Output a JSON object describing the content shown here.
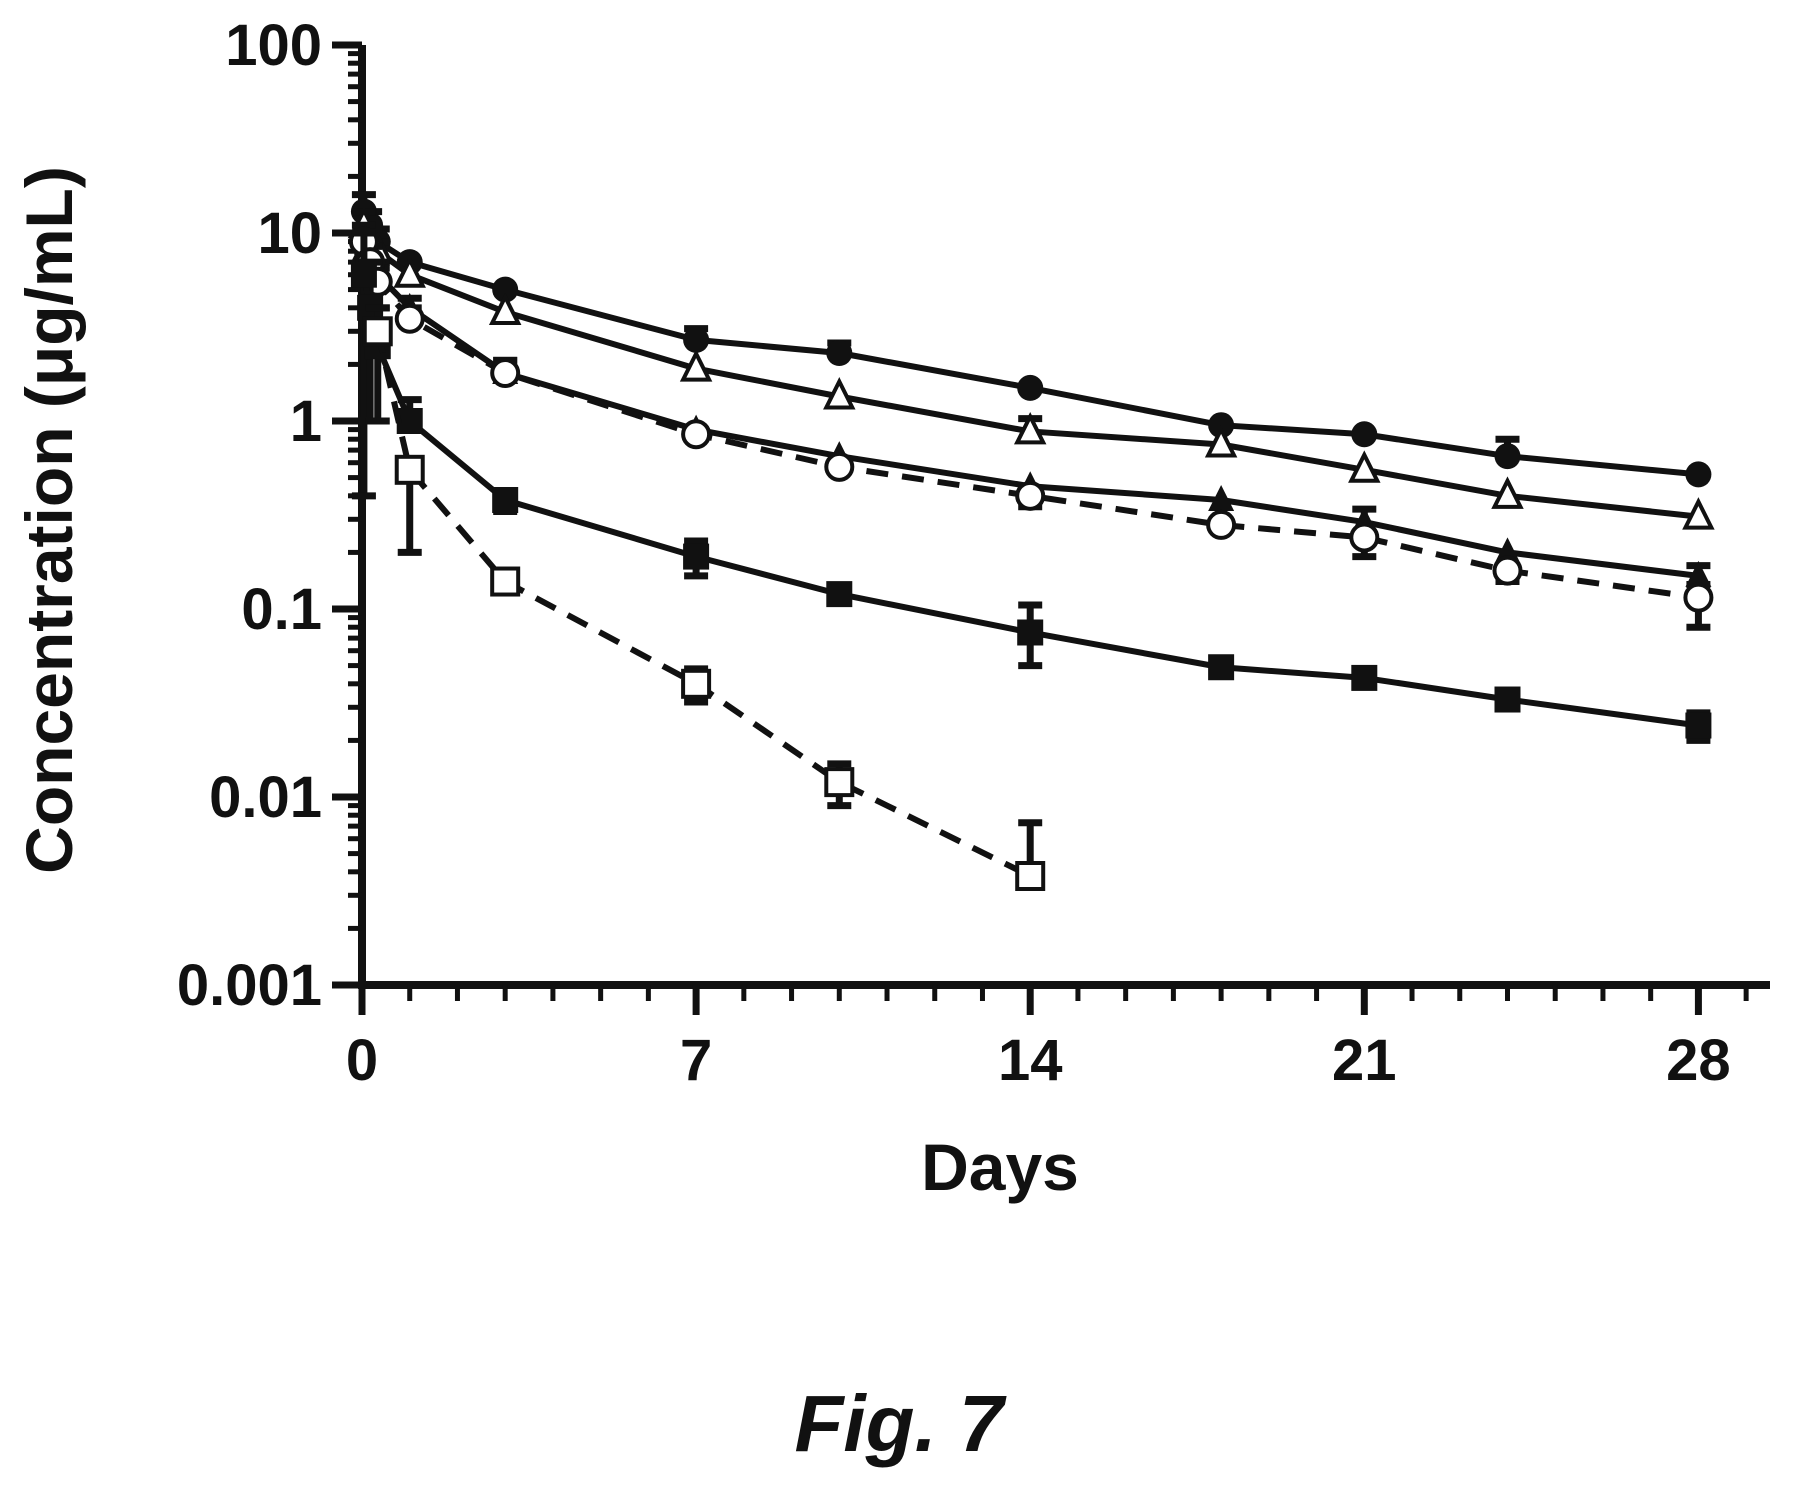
{
  "caption": "Fig. 7",
  "chart_data": {
    "type": "line",
    "title": "",
    "xlabel": "Days",
    "ylabel": "Concentration (μg/mL)",
    "xlim": [
      0,
      29.5
    ],
    "ylim": [
      0.001,
      100
    ],
    "yscale": "log",
    "xticks": [
      0,
      7,
      14,
      21,
      28
    ],
    "xtick_labels": [
      "0",
      "7",
      "14",
      "21",
      "28"
    ],
    "yticks": [
      0.001,
      0.01,
      0.1,
      1,
      10,
      100
    ],
    "ytick_labels": [
      "0.001",
      "0.01",
      "0.1",
      "1",
      "10",
      "100"
    ],
    "grid": false,
    "legend": "none",
    "series": [
      {
        "marker": "filled-circle",
        "line": "solid",
        "color": "#111111",
        "x": [
          0.04,
          0.17,
          0.33,
          1,
          3,
          7,
          10,
          14,
          18,
          21,
          24,
          28
        ],
        "y": [
          13,
          11,
          9,
          7,
          5,
          2.7,
          2.3,
          1.5,
          0.95,
          0.85,
          0.65,
          0.52
        ],
        "err_up": [
          3,
          2,
          1.5,
          0,
          0,
          0.4,
          0.3,
          0,
          0,
          0,
          0.15,
          0
        ]
      },
      {
        "marker": "open-triangle",
        "line": "solid",
        "color": "#111111",
        "x": [
          0.04,
          0.17,
          0.33,
          1,
          3,
          7,
          10,
          14,
          18,
          21,
          24,
          28
        ],
        "y": [
          11,
          9,
          8,
          6,
          3.8,
          1.9,
          1.35,
          0.88,
          0.75,
          0.55,
          0.4,
          0.31
        ],
        "err_up": [
          2,
          1.5,
          1,
          0,
          0,
          0,
          0,
          0.15,
          0,
          0,
          0,
          0
        ]
      },
      {
        "marker": "filled-triangle",
        "line": "solid",
        "color": "#111111",
        "x": [
          0.04,
          0.17,
          0.33,
          1,
          3,
          7,
          10,
          14,
          18,
          21,
          24,
          28
        ],
        "y": [
          8,
          7,
          6,
          4,
          1.8,
          0.9,
          0.65,
          0.45,
          0.38,
          0.29,
          0.2,
          0.15
        ],
        "err_up": [
          2,
          1.5,
          1,
          0.5,
          0.3,
          0,
          0,
          0,
          0,
          0.05,
          0,
          0.02
        ]
      },
      {
        "marker": "open-circle",
        "line": "dashed",
        "color": "#111111",
        "x": [
          0.04,
          0.17,
          0.33,
          1,
          3,
          7,
          10,
          14,
          18,
          21,
          24,
          28
        ],
        "y": [
          9,
          7,
          5.5,
          3.5,
          1.8,
          0.85,
          0.57,
          0.4,
          0.28,
          0.24,
          0.16,
          0.115
        ],
        "err_up": [
          2,
          1.5,
          1,
          0.5,
          0.3,
          0,
          0,
          0,
          0,
          0,
          0,
          0.02
        ],
        "err_down": [
          0,
          0,
          0,
          0,
          0,
          0,
          0,
          0.05,
          0,
          0.05,
          0.02,
          0.035
        ]
      },
      {
        "marker": "filled-square",
        "line": "solid",
        "color": "#111111",
        "x": [
          0.04,
          0.17,
          0.33,
          1,
          3,
          7,
          10,
          14,
          18,
          21,
          24,
          28
        ],
        "y": [
          6,
          4,
          2.5,
          1,
          0.38,
          0.19,
          0.12,
          0.075,
          0.049,
          0.043,
          0.033,
          0.024
        ],
        "err_up": [
          4,
          3,
          1.5,
          0.3,
          0,
          0.04,
          0,
          0.03,
          0,
          0,
          0,
          0.004
        ],
        "err_down": [
          5.6,
          3,
          1.5,
          0,
          0.05,
          0.04,
          0,
          0.025,
          0,
          0,
          0,
          0.004
        ]
      },
      {
        "marker": "open-square",
        "line": "dashed",
        "color": "#111111",
        "x": [
          0.33,
          1,
          3,
          7,
          10,
          14
        ],
        "y": [
          3,
          0.55,
          0.14,
          0.04,
          0.012,
          0.0038
        ],
        "err_up": [
          1,
          0,
          0,
          0.008,
          0.003,
          0.0035
        ],
        "err_down": [
          0,
          0.35,
          0,
          0.008,
          0.003,
          0
        ]
      }
    ]
  }
}
